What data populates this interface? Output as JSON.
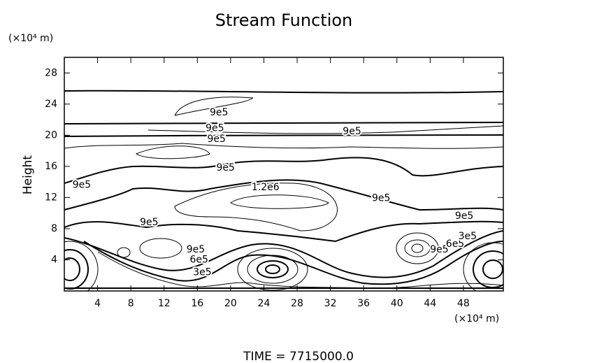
{
  "chart_data": {
    "type": "contour",
    "title": "Stream Function",
    "y_label": "Height",
    "y_unit": "(×10⁴ m)",
    "x_unit": "(×10⁴ m)",
    "footer": "TIME = 7715000.0",
    "xlim": [
      0,
      52.8
    ],
    "ylim": [
      0,
      30
    ],
    "xticks": [
      4,
      8,
      12,
      16,
      20,
      24,
      28,
      32,
      36,
      40,
      44,
      48
    ],
    "yticks": [
      4,
      8,
      12,
      16,
      20,
      24,
      28
    ],
    "contour_labels": [
      {
        "text": "9e5",
        "x": 18.6,
        "y": 22.9
      },
      {
        "text": "9e5",
        "x": 18.1,
        "y": 20.9
      },
      {
        "text": "9e5",
        "x": 18.3,
        "y": 19.5
      },
      {
        "text": "9e5",
        "x": 34.6,
        "y": 20.5
      },
      {
        "text": "9e5",
        "x": 19.4,
        "y": 15.8
      },
      {
        "text": "9e5",
        "x": 2.1,
        "y": 13.6
      },
      {
        "text": "1.2e6",
        "x": 24.2,
        "y": 13.3
      },
      {
        "text": "9e5",
        "x": 38.1,
        "y": 11.9
      },
      {
        "text": "9e5",
        "x": 10.2,
        "y": 8.8
      },
      {
        "text": "9e5",
        "x": 48.1,
        "y": 9.6
      },
      {
        "text": "9e5",
        "x": 15.8,
        "y": 5.3
      },
      {
        "text": "6e5",
        "x": 16.2,
        "y": 4.0
      },
      {
        "text": "3e5",
        "x": 16.6,
        "y": 2.4
      },
      {
        "text": "9e5",
        "x": 45.1,
        "y": 5.3
      },
      {
        "text": "6e5",
        "x": 47.0,
        "y": 6.0
      },
      {
        "text": "3e5",
        "x": 48.5,
        "y": 7.0
      }
    ]
  }
}
